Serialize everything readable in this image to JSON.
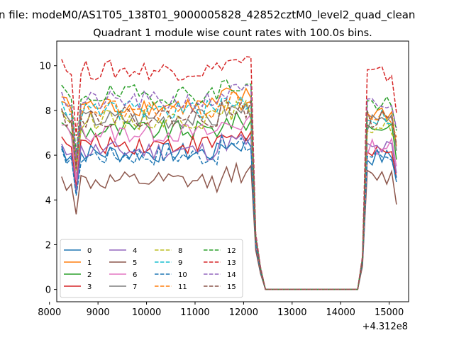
{
  "suptitle": "n file: modeM0/AS1T05_138T01_9000005828_42852cztM0_level2_quad_clean",
  "chart_data": {
    "type": "line",
    "title": "Quadrant 1 module wise count rates with 100.0s bins.",
    "xlabel": "",
    "ylabel": "",
    "x_offset_label": "+4.312e8",
    "xlim": [
      8150,
      15400
    ],
    "ylim": [
      -0.55,
      11.1
    ],
    "xticks": [
      8000,
      9000,
      10000,
      11000,
      12000,
      13000,
      14000,
      15000
    ],
    "yticks": [
      0,
      2,
      4,
      6,
      8,
      10
    ],
    "legend_position": "lower-left",
    "legend_columns": 4,
    "x": [
      8250,
      8350,
      8450,
      8550,
      8650,
      8750,
      8850,
      8950,
      9050,
      9150,
      9250,
      9350,
      9450,
      9550,
      9650,
      9750,
      9850,
      9950,
      10050,
      10150,
      10250,
      10350,
      10450,
      10550,
      10650,
      10750,
      10850,
      10950,
      11050,
      11150,
      11250,
      11350,
      11450,
      11550,
      11650,
      11750,
      11850,
      11950,
      12050,
      12150,
      12250,
      12350,
      12450,
      12550,
      12650,
      12750,
      12850,
      12950,
      13050,
      13150,
      13250,
      13350,
      13450,
      13550,
      13650,
      13750,
      13850,
      13950,
      14050,
      14150,
      14250,
      14350,
      14450,
      14550,
      14650,
      14750,
      14850,
      14950,
      15050,
      15150
    ],
    "series": [
      {
        "name": "0",
        "color": "#1f77b4",
        "style": "solid",
        "plateau": 6.1,
        "gap": 0.8,
        "tail": 5.9,
        "end": 4.8
      },
      {
        "name": "1",
        "color": "#ff7f0e",
        "style": "solid",
        "plateau": 8.2,
        "gap": 0.9,
        "tail": 7.9,
        "end": 6.4
      },
      {
        "name": "2",
        "color": "#2ca02c",
        "style": "solid",
        "plateau": 7.1,
        "gap": 0.85,
        "tail": 7.3,
        "end": 5.8
      },
      {
        "name": "3",
        "color": "#d62728",
        "style": "solid",
        "plateau": 6.5,
        "gap": 0.85,
        "tail": 6.0,
        "end": 5.0
      },
      {
        "name": "4",
        "color": "#9467bd",
        "style": "solid",
        "plateau": 6.2,
        "gap": 0.8,
        "tail": 6.3,
        "end": 5.2
      },
      {
        "name": "5",
        "color": "#8c564b",
        "style": "solid",
        "plateau": 4.8,
        "gap": 0.7,
        "tail": 5.0,
        "end": 3.8
      },
      {
        "name": "6",
        "color": "#e377c2",
        "style": "solid",
        "plateau": 7.0,
        "gap": 0.85,
        "tail": 6.4,
        "end": 5.5
      },
      {
        "name": "7",
        "color": "#7f7f7f",
        "style": "solid",
        "plateau": 7.6,
        "gap": 0.9,
        "tail": 7.4,
        "end": 6.2
      },
      {
        "name": "8",
        "color": "#bcbd22",
        "style": "dashed",
        "plateau": 7.6,
        "gap": 0.9,
        "tail": 7.3,
        "end": 6.6
      },
      {
        "name": "9",
        "color": "#17becf",
        "style": "dashed",
        "plateau": 8.0,
        "gap": 0.9,
        "tail": 7.7,
        "end": 6.8
      },
      {
        "name": "10",
        "color": "#1f77b4",
        "style": "dashed",
        "plateau": 6.0,
        "gap": 0.8,
        "tail": 6.0,
        "end": 5.0
      },
      {
        "name": "11",
        "color": "#ff7f0e",
        "style": "dashed",
        "plateau": 8.0,
        "gap": 0.9,
        "tail": 7.6,
        "end": 6.8
      },
      {
        "name": "12",
        "color": "#2ca02c",
        "style": "dashed",
        "plateau": 8.7,
        "gap": 0.95,
        "tail": 8.3,
        "end": 7.1
      },
      {
        "name": "13",
        "color": "#d62728",
        "style": "dashed",
        "plateau": 9.8,
        "gap": 1.0,
        "tail": 9.6,
        "end": 7.9
      },
      {
        "name": "14",
        "color": "#9467bd",
        "style": "dashed",
        "plateau": 8.4,
        "gap": 0.95,
        "tail": 8.2,
        "end": 7.2
      },
      {
        "name": "15",
        "color": "#8c564b",
        "style": "dashed",
        "plateau": 7.7,
        "gap": 0.9,
        "tail": 7.6,
        "end": 6.5
      }
    ]
  }
}
